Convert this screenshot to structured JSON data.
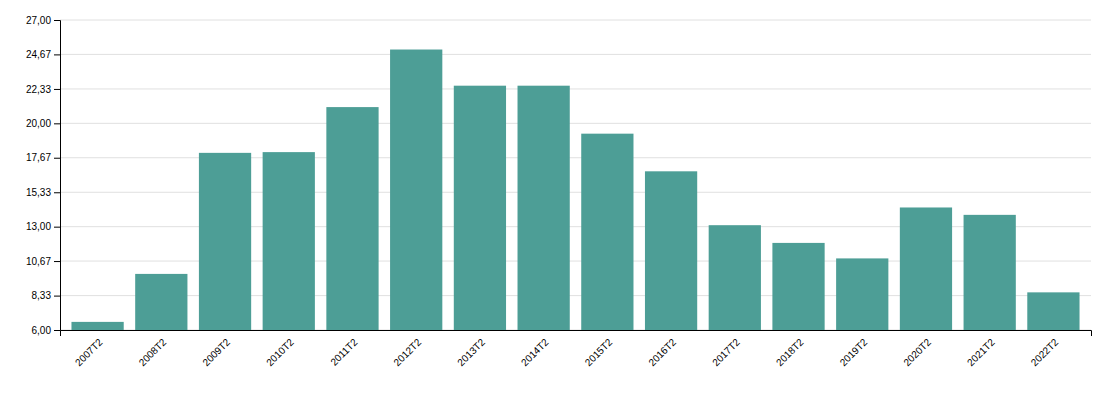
{
  "chart_data": {
    "type": "bar",
    "categories": [
      "2007T2",
      "2008T2",
      "2009T2",
      "2010T2",
      "2011T2",
      "2012T2",
      "2013T2",
      "2014T2",
      "2015T2",
      "2016T2",
      "2017T2",
      "2018T2",
      "2019T2",
      "2020T2",
      "2021T2",
      "2022T2"
    ],
    "values": [
      6.55,
      9.8,
      18.0,
      18.05,
      21.1,
      25.0,
      22.55,
      22.55,
      19.3,
      16.75,
      13.1,
      11.9,
      10.85,
      14.3,
      13.8,
      8.55
    ],
    "color": "#4d9e96",
    "ylim": [
      6.0,
      27.0
    ],
    "yticks": [
      {
        "value": 6.0,
        "label": "6,00"
      },
      {
        "value": 8.33,
        "label": "8,33"
      },
      {
        "value": 10.67,
        "label": "10,67"
      },
      {
        "value": 13.0,
        "label": "13,00"
      },
      {
        "value": 15.33,
        "label": "15,33"
      },
      {
        "value": 17.67,
        "label": "17,67"
      },
      {
        "value": 20.0,
        "label": "20,00"
      },
      {
        "value": 22.33,
        "label": "22,33"
      },
      {
        "value": 24.67,
        "label": "24,67"
      },
      {
        "value": 27.0,
        "label": "27,00"
      }
    ],
    "grid": true
  }
}
